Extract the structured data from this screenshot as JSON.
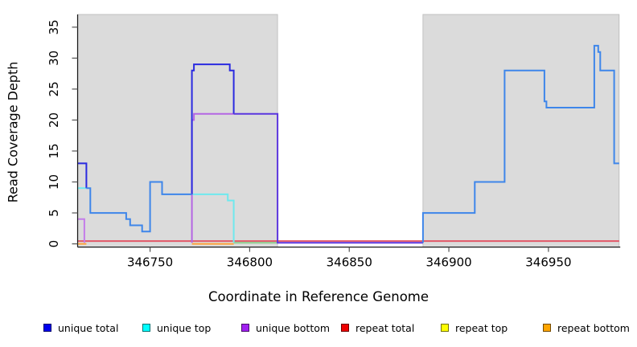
{
  "chart_data": {
    "type": "line",
    "subtype": "step-coverage-plot",
    "title": "",
    "xlabel": "Coordinate in Reference Genome",
    "ylabel": "Read Coverage Depth",
    "xlim": [
      346713.8,
      346985.5
    ],
    "ylim": [
      -0.5,
      37.2
    ],
    "x_ticks": [
      346750,
      346800,
      346850,
      346900,
      346950
    ],
    "y_ticks": [
      0,
      5,
      10,
      15,
      20,
      25,
      30,
      35
    ],
    "grid": false,
    "background_shading": {
      "color": "#DBDBDB",
      "edge_color": "#B8B8B8",
      "regions": [
        [
          346713.8,
          346814
        ],
        [
          346887,
          346985.5
        ]
      ],
      "unshaded_gap": [
        346814,
        346887
      ]
    },
    "series": [
      {
        "name": "unique total",
        "color": "#0000EE",
        "step_points": [
          [
            346714,
            13
          ],
          [
            346718,
            9
          ],
          [
            346720,
            5
          ],
          [
            346738,
            4
          ],
          [
            346740,
            3
          ],
          [
            346746,
            2
          ],
          [
            346750,
            10
          ],
          [
            346756,
            8
          ],
          [
            346771,
            28
          ],
          [
            346772,
            29
          ],
          [
            346790,
            28
          ],
          [
            346792,
            21
          ],
          [
            346814,
            0
          ],
          [
            346887,
            5
          ],
          [
            346913,
            10
          ],
          [
            346928,
            28
          ],
          [
            346948,
            23
          ],
          [
            346949,
            22
          ],
          [
            346973,
            32
          ],
          [
            346975,
            31
          ],
          [
            346976,
            28
          ],
          [
            346983,
            13
          ],
          [
            346985,
            13
          ]
        ]
      },
      {
        "name": "unique top",
        "color": "#00FFFF",
        "step_points": [
          [
            346714,
            9
          ],
          [
            346720,
            5
          ],
          [
            346738,
            4
          ],
          [
            346740,
            3
          ],
          [
            346746,
            2
          ],
          [
            346750,
            10
          ],
          [
            346756,
            8
          ],
          [
            346789,
            7
          ],
          [
            346792,
            0
          ],
          [
            346887,
            5
          ],
          [
            346913,
            10
          ],
          [
            346928,
            28
          ],
          [
            346948,
            23
          ],
          [
            346949,
            22
          ],
          [
            346973,
            32
          ],
          [
            346975,
            31
          ],
          [
            346976,
            28
          ],
          [
            346983,
            13
          ],
          [
            346985,
            13
          ]
        ]
      },
      {
        "name": "unique bottom",
        "color": "#A020F0",
        "step_points": [
          [
            346714,
            4
          ],
          [
            346717,
            0
          ],
          [
            346771,
            20
          ],
          [
            346772,
            21
          ],
          [
            346814,
            0
          ],
          [
            346985,
            0
          ]
        ]
      },
      {
        "name": "repeat total",
        "color": "#EE0000",
        "step_points": [
          [
            346714,
            0
          ],
          [
            346985,
            0
          ]
        ]
      },
      {
        "name": "repeat top",
        "color": "#FFFF00",
        "step_points": [
          [
            346714,
            0
          ],
          [
            346985,
            0
          ]
        ]
      },
      {
        "name": "repeat bottom",
        "color": "#FFA500",
        "step_points": [
          [
            346714,
            0
          ],
          [
            346985,
            0
          ]
        ]
      }
    ],
    "visible_segments": [
      {
        "name": "repeat-total-line",
        "color": "#E25767",
        "pts": [
          [
            346713.8,
            0.45
          ],
          [
            346985.5,
            0.45
          ]
        ]
      },
      {
        "name": "repeat-bottom-line-left",
        "color": "#FFA33B",
        "pts": [
          [
            346713.8,
            0
          ],
          [
            346718,
            0
          ]
        ]
      },
      {
        "name": "repeat-bottom-line-mid",
        "color": "#FFA33B",
        "pts": [
          [
            346771,
            0
          ],
          [
            346792,
            0
          ]
        ]
      },
      {
        "name": "repeat-top-unique-top-overlap-line",
        "color": "#8FCE8F",
        "pts": [
          [
            346792,
            0.18
          ],
          [
            346814,
            0.18
          ]
        ]
      },
      {
        "name": "unique-top-line-left",
        "color": "#6FE9EE",
        "pts": [
          [
            346713.8,
            9
          ],
          [
            346718,
            9
          ]
        ]
      },
      {
        "name": "unique-top-line-mid",
        "color": "#6FE9EE",
        "pts": [
          [
            346771,
            8
          ],
          [
            346789,
            8
          ],
          [
            346789,
            7
          ],
          [
            346792,
            7
          ],
          [
            346792,
            0.18
          ]
        ]
      },
      {
        "name": "unique-bottom-line-left",
        "color": "#C47CEA",
        "pts": [
          [
            346713.8,
            4
          ],
          [
            346717,
            4
          ],
          [
            346717,
            0.18
          ]
        ]
      },
      {
        "name": "unique-bottom-line-mid",
        "color": "#B466E3",
        "pts": [
          [
            346771,
            0.18
          ],
          [
            346771,
            20
          ],
          [
            346772,
            20
          ],
          [
            346772,
            21
          ],
          [
            346792,
            21
          ]
        ]
      },
      {
        "name": "unique-total-line-left",
        "color": "#2B2BE0",
        "pts": [
          [
            346713.8,
            13
          ],
          [
            346718,
            13
          ],
          [
            346718,
            9
          ]
        ]
      },
      {
        "name": "unique-total-spike",
        "color": "#2B2BE0",
        "pts": [
          [
            346771,
            8
          ],
          [
            346771,
            28
          ],
          [
            346772,
            28
          ],
          [
            346772,
            29
          ],
          [
            346790,
            29
          ],
          [
            346790,
            28
          ],
          [
            346792,
            28
          ],
          [
            346792,
            21
          ]
        ]
      },
      {
        "name": "unique-total-bottom-overlap-line",
        "color": "#5B36DF",
        "pts": [
          [
            346792,
            21
          ],
          [
            346814,
            21
          ],
          [
            346814,
            0.18
          ],
          [
            346887,
            0.18
          ]
        ]
      },
      {
        "name": "unique-total-top-overlap-left",
        "color": "#3E86EA",
        "pts": [
          [
            346718,
            9
          ],
          [
            346720,
            9
          ],
          [
            346720,
            5
          ],
          [
            346738,
            5
          ],
          [
            346738,
            4
          ],
          [
            346740,
            4
          ],
          [
            346740,
            3
          ],
          [
            346746,
            3
          ],
          [
            346746,
            2
          ],
          [
            346750,
            2
          ],
          [
            346750,
            10
          ],
          [
            346756,
            10
          ],
          [
            346756,
            8
          ],
          [
            346771,
            8
          ]
        ]
      },
      {
        "name": "unique-total-top-overlap-right",
        "color": "#3E86EA",
        "pts": [
          [
            346887,
            0.18
          ],
          [
            346887,
            5
          ],
          [
            346913,
            5
          ],
          [
            346913,
            10
          ],
          [
            346928,
            10
          ],
          [
            346928,
            28
          ],
          [
            346948,
            28
          ],
          [
            346948,
            23
          ],
          [
            346949,
            23
          ],
          [
            346949,
            22
          ],
          [
            346973,
            22
          ],
          [
            346973,
            32
          ],
          [
            346975,
            32
          ],
          [
            346975,
            31
          ],
          [
            346976,
            31
          ],
          [
            346976,
            28
          ],
          [
            346983,
            28
          ],
          [
            346983,
            13
          ],
          [
            346985.5,
            13
          ]
        ]
      }
    ],
    "legend": {
      "position": "bottom",
      "entries": [
        {
          "label": "unique total",
          "color": "#0000EE"
        },
        {
          "label": "unique top",
          "color": "#00FFFF"
        },
        {
          "label": "unique bottom",
          "color": "#A020F0"
        },
        {
          "label": "repeat total",
          "color": "#EE0000"
        },
        {
          "label": "repeat top",
          "color": "#FFFF00"
        },
        {
          "label": "repeat bottom",
          "color": "#FFA500"
        }
      ]
    }
  }
}
